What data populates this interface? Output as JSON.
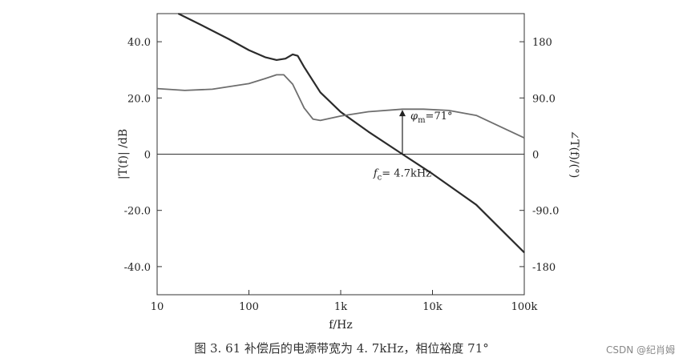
{
  "chart_data": {
    "type": "line",
    "xscale": "log",
    "xlim": [
      10,
      100000
    ],
    "x_ticks": [
      {
        "value": 10,
        "label": "10"
      },
      {
        "value": 100,
        "label": "100"
      },
      {
        "value": 1000,
        "label": "1k"
      },
      {
        "value": 10000,
        "label": "10k"
      },
      {
        "value": 100000,
        "label": "100k"
      }
    ],
    "xlabel": "f/Hz",
    "ylabel_left": "|T(f)| /dB",
    "ylim_left": [
      -50,
      50
    ],
    "y_left_ticks": [
      {
        "value": 40,
        "label": "40.0"
      },
      {
        "value": 20,
        "label": "20.0"
      },
      {
        "value": 0,
        "label": "0"
      },
      {
        "value": -20,
        "label": "-20.0"
      },
      {
        "value": -40,
        "label": "-40.0"
      }
    ],
    "ylabel_right": "∠T(f)/(°)",
    "ylim_right": [
      -225,
      225
    ],
    "y_right_ticks": [
      {
        "value": 180,
        "label": "180"
      },
      {
        "value": 90,
        "label": "90.0"
      },
      {
        "value": 0,
        "label": "0"
      },
      {
        "value": -90,
        "label": "-90.0"
      },
      {
        "value": -180,
        "label": "-180"
      }
    ],
    "series": [
      {
        "axis": "left",
        "color": "#2b2b2b",
        "points": [
          [
            17,
            50
          ],
          [
            30,
            46
          ],
          [
            60,
            41
          ],
          [
            100,
            37
          ],
          [
            150,
            34.5
          ],
          [
            200,
            33.5
          ],
          [
            250,
            34
          ],
          [
            300,
            35.5
          ],
          [
            340,
            35
          ],
          [
            400,
            31
          ],
          [
            600,
            22
          ],
          [
            1000,
            15
          ],
          [
            2000,
            8
          ],
          [
            4700,
            0
          ],
          [
            10000,
            -7
          ],
          [
            30000,
            -18
          ],
          [
            100000,
            -35
          ]
        ]
      },
      {
        "axis": "right",
        "color": "#6e6e6e",
        "points": [
          [
            10,
            105
          ],
          [
            20,
            102
          ],
          [
            40,
            104
          ],
          [
            100,
            113
          ],
          [
            150,
            121
          ],
          [
            200,
            127
          ],
          [
            240,
            127
          ],
          [
            300,
            112
          ],
          [
            400,
            74
          ],
          [
            500,
            56
          ],
          [
            600,
            54
          ],
          [
            1000,
            61
          ],
          [
            2000,
            68
          ],
          [
            4700,
            72
          ],
          [
            8000,
            72
          ],
          [
            15000,
            70
          ],
          [
            30000,
            62
          ],
          [
            100000,
            26
          ]
        ]
      }
    ],
    "annotations": {
      "fc": {
        "x": 4700,
        "text": "4.7kHz",
        "prefix": "f",
        "sub": "c"
      },
      "phase_margin": {
        "x": 4700,
        "text": "=71°",
        "prefix": "φ",
        "sub": "m",
        "from_deg": 0,
        "to_deg": 71
      }
    }
  },
  "caption": "图 3. 61    补偿后的电源带宽为 4. 7kHz，相位裕度 71°",
  "watermark": "CSDN @纪肖姆"
}
